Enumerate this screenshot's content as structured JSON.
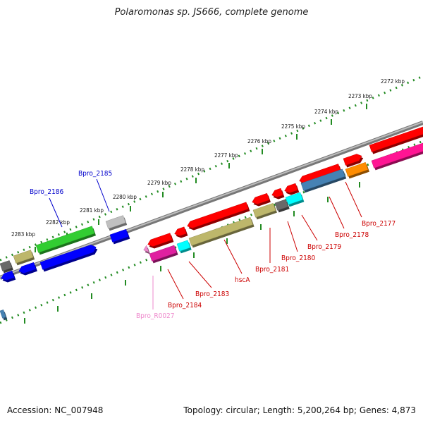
{
  "title": "Polaromonas sp. JS666, complete genome",
  "footer": {
    "accession": "Accession: NC_007948",
    "summary": "Topology: circular; Length: 5,200,264 bp; Genes: 4,873"
  },
  "colors": {
    "red": "#ff0000",
    "pink": "#ff1493",
    "magenta": "#e020a0",
    "olive": "#bdb76b",
    "cyan": "#00ffff",
    "grey": "#696969",
    "steelblue": "#4682b4",
    "orange": "#ff8c00",
    "green": "#32cd32",
    "blue": "#0000ff",
    "silver": "#c0c0c0",
    "label_red": "#cc0000",
    "label_blue": "#0000cc",
    "label_pink": "#ee88cc",
    "scale_green": "#228b22"
  },
  "scale_ticks": [
    {
      "label": "2272 kbp",
      "angle": 0
    },
    {
      "label": "2273 kbp",
      "angle": 1
    },
    {
      "label": "2274 kbp",
      "angle": 2
    },
    {
      "label": "2275 kbp",
      "angle": 3
    },
    {
      "label": "2276 kbp",
      "angle": 4
    },
    {
      "label": "2277 kbp",
      "angle": 5
    },
    {
      "label": "2278 kbp",
      "angle": 6
    },
    {
      "label": "2279 kbp",
      "angle": 7
    },
    {
      "label": "2280 kbp",
      "angle": 8
    },
    {
      "label": "2281 kbp",
      "angle": 9
    },
    {
      "label": "2282 kbp",
      "angle": 10
    },
    {
      "label": "2283 kbp",
      "angle": 11
    }
  ],
  "gene_labels": [
    {
      "name": "Bpro_2177",
      "color": "label_red"
    },
    {
      "name": "Bpro_2178",
      "color": "label_red"
    },
    {
      "name": "Bpro_2179",
      "color": "label_red"
    },
    {
      "name": "Bpro_2180",
      "color": "label_red"
    },
    {
      "name": "Bpro_2181",
      "color": "label_red"
    },
    {
      "name": "hscA",
      "color": "label_red"
    },
    {
      "name": "Bpro_2183",
      "color": "label_red"
    },
    {
      "name": "Bpro_2184",
      "color": "label_red"
    },
    {
      "name": "Bpro_R0027",
      "color": "label_pink"
    },
    {
      "name": "Bpro_2185",
      "color": "label_blue"
    },
    {
      "name": "Bpro_2186",
      "color": "label_blue"
    }
  ]
}
